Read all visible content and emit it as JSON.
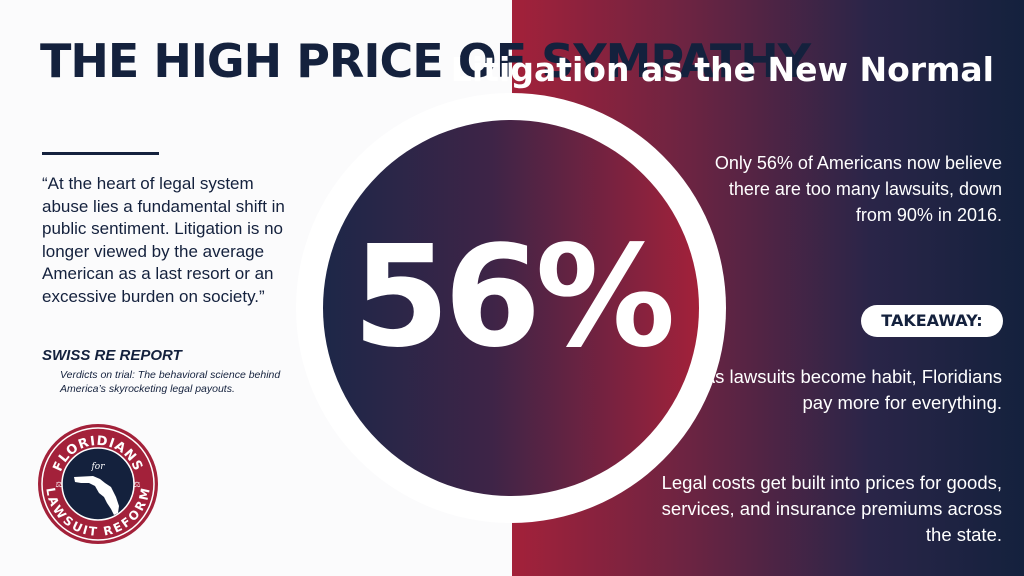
{
  "colors": {
    "navy": "#14213d",
    "crimson": "#a3213a",
    "white": "#ffffff"
  },
  "left": {
    "headline": "THE HIGH PRICE OF SYMPATHY",
    "quote": "“At the heart of legal system abuse lies a fundamental shift in public sentiment. Litigation is no longer viewed by the average American as a last resort or an excessive burden on society.”",
    "source_title": "SWISS RE REPORT",
    "source_subtitle": "Verdicts on trial: The behavioral science behind America’s skyrocketing legal payouts."
  },
  "logo": {
    "top_text": "FLORIDIANS",
    "middle_text": "for",
    "bottom_text": "LAWSUIT REFORM",
    "icon": "florida-map-icon"
  },
  "stat": {
    "value": "56%"
  },
  "right": {
    "title": "Litigation as the New Normal",
    "body": "Only 56% of Americans now believe there are too many lawsuits, down from 90% in 2016.",
    "takeaway_label": "TAKEAWAY:",
    "takeaway_text": "As lawsuits become habit, Floridians pay more for everything.",
    "costs_text": "Legal costs get built into prices for goods, services, and insurance premiums across the state."
  }
}
